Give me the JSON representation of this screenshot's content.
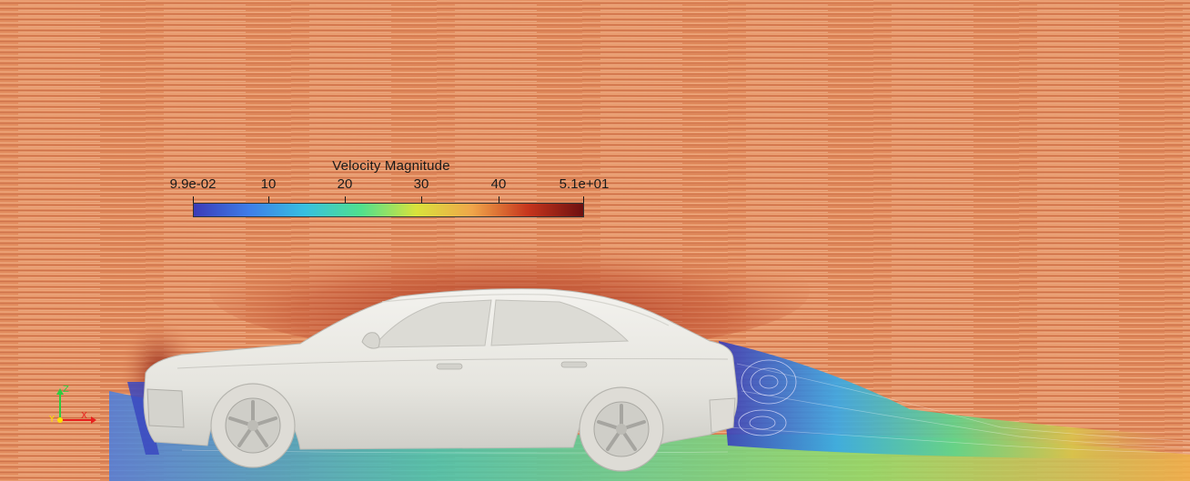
{
  "legend": {
    "title": "Velocity Magnitude",
    "tick_labels": [
      "9.9e-02",
      "10",
      "20",
      "30",
      "40",
      "5.1e+01"
    ],
    "colormap_stops": [
      "#3b3bb8",
      "#3e7ee8",
      "#37c0e0",
      "#4fe08e",
      "#d9e23c",
      "#f0a64a",
      "#c7361d",
      "#6e1010"
    ]
  },
  "axes_triad": {
    "z": "Z",
    "y": "Y",
    "x": "X",
    "colors": {
      "z": "#2ecc40",
      "y": "#ffe100",
      "x": "#e8201d"
    }
  },
  "colors": {
    "free_stream": "#e08a5c",
    "streamline_light": "#f4b48a",
    "streamline_dark": "#b8573a",
    "car_body": "#ecebe6",
    "car_shadow": "#c9c8c2"
  }
}
